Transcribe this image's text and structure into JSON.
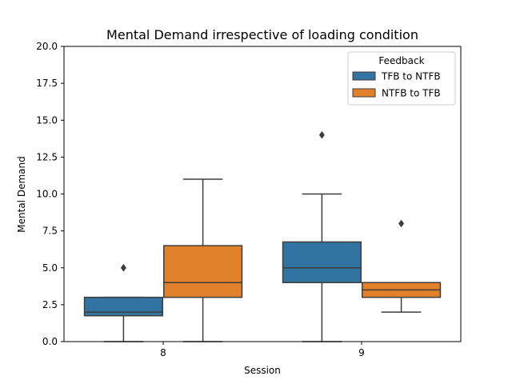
{
  "chart_data": {
    "type": "box",
    "title": "Mental Demand irrespective of loading condition",
    "xlabel": "Session",
    "ylabel": "Mental Demand",
    "ylim": [
      0,
      20
    ],
    "yticks": [
      0.0,
      2.5,
      5.0,
      7.5,
      10.0,
      12.5,
      15.0,
      17.5,
      20.0
    ],
    "ytick_labels": [
      "0.0",
      "2.5",
      "5.0",
      "7.5",
      "10.0",
      "12.5",
      "15.0",
      "17.5",
      "20.0"
    ],
    "categories": [
      "8",
      "9"
    ],
    "grid": false,
    "legend": {
      "title": "Feedback",
      "placement": "top-right"
    },
    "series": [
      {
        "name": "TFB to NTFB",
        "color": "#3274a1",
        "boxes": [
          {
            "category": "8",
            "whisker_low": 0,
            "q1": 1.75,
            "median": 2,
            "q3": 3,
            "whisker_high": 3,
            "outliers": [
              5
            ]
          },
          {
            "category": "9",
            "whisker_low": 0,
            "q1": 4,
            "median": 5,
            "q3": 6.75,
            "whisker_high": 10,
            "outliers": [
              14
            ]
          }
        ]
      },
      {
        "name": "NTFB to TFB",
        "color": "#e1812c",
        "boxes": [
          {
            "category": "8",
            "whisker_low": 0,
            "q1": 3,
            "median": 4,
            "q3": 6.5,
            "whisker_high": 11,
            "outliers": []
          },
          {
            "category": "9",
            "whisker_low": 2,
            "q1": 3,
            "median": 3.5,
            "q3": 4,
            "whisker_high": 4,
            "outliers": [
              8
            ]
          }
        ]
      }
    ]
  }
}
